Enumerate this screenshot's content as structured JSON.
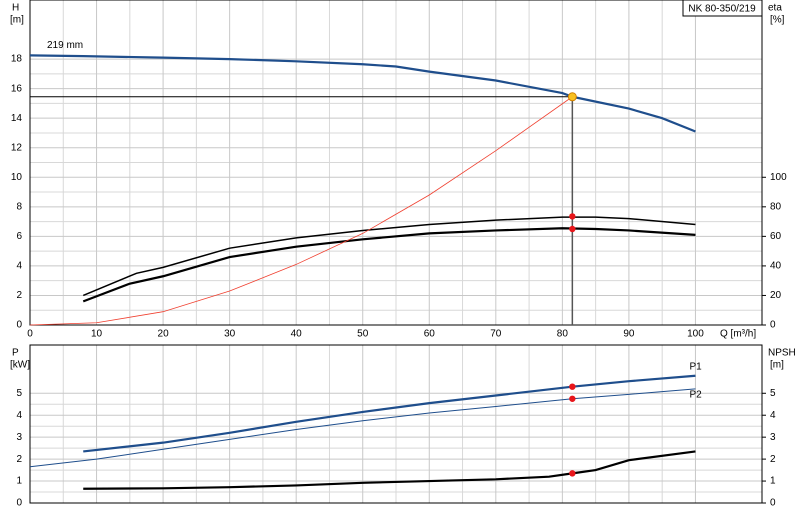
{
  "chart_data": [
    {
      "type": "line",
      "title": "NK 80-350/219",
      "ylabel": "H",
      "yunit": "[m]",
      "y2label": "eta",
      "y2unit": "[%]",
      "xlabel": "Q [m³/h]",
      "xlim": [
        0,
        110
      ],
      "xticks": [
        0,
        10,
        20,
        30,
        40,
        50,
        60,
        70,
        80,
        90,
        100
      ],
      "ylim": [
        0,
        22
      ],
      "yticks": [
        0,
        2,
        4,
        6,
        8,
        10,
        12,
        14,
        16,
        18
      ],
      "y2lim": [
        0,
        220
      ],
      "y2ticks": [
        0,
        20,
        40,
        60,
        80,
        100
      ],
      "grid": true,
      "series": [
        {
          "name": "219 mm",
          "color": "#1f4e8c",
          "width": 2.2,
          "x": [
            0,
            8,
            20,
            30,
            40,
            50,
            55,
            60,
            70,
            80,
            81.5,
            90,
            95,
            100
          ],
          "values": [
            18.25,
            18.2,
            18.1,
            18.0,
            17.85,
            17.65,
            17.5,
            17.15,
            16.55,
            15.7,
            15.45,
            14.65,
            14.0,
            13.1
          ]
        },
        {
          "color": "#000000",
          "width": 1.5,
          "axis": "y2",
          "x": [
            8,
            16,
            20,
            30,
            40,
            50,
            60,
            70,
            80,
            85,
            90,
            100
          ],
          "values": [
            20,
            35,
            39,
            52,
            59,
            64,
            68,
            71,
            73,
            73,
            72,
            68
          ],
          "marker": {
            "x": 81.5,
            "value": 73.5
          }
        },
        {
          "color": "#000000",
          "width": 2.2,
          "axis": "y2",
          "x": [
            8,
            15,
            20,
            30,
            40,
            50,
            60,
            70,
            80,
            85,
            90,
            100
          ],
          "values": [
            16,
            28,
            33,
            46,
            53,
            58,
            62,
            64,
            65.5,
            65,
            64,
            61
          ],
          "marker": {
            "x": 81.5,
            "value": 65
          }
        },
        {
          "color": "#f04030",
          "width": 0.8,
          "x": [
            0,
            10,
            20,
            30,
            40,
            50,
            60,
            70,
            81.5
          ],
          "values": [
            0,
            0.15,
            0.9,
            2.3,
            4.1,
            6.2,
            8.8,
            11.8,
            15.45
          ]
        }
      ],
      "duty_point": {
        "q": 81.5,
        "h": 15.45
      }
    },
    {
      "type": "line",
      "ylabel": "P",
      "yunit": "[kW]",
      "y2label": "NPSH",
      "y2unit": "[m]",
      "xlim": [
        0,
        110
      ],
      "xticks": [
        0,
        10,
        20,
        30,
        40,
        50,
        60,
        70,
        80,
        90,
        100
      ],
      "ylim": [
        0,
        7.2
      ],
      "yticks": [
        0,
        1,
        2,
        3,
        4,
        5
      ],
      "y2lim": [
        0,
        7.2
      ],
      "y2ticks": [
        0,
        1,
        2,
        3,
        4,
        5
      ],
      "grid": true,
      "series": [
        {
          "name": "P1",
          "color": "#1f4e8c",
          "width": 2.2,
          "x": [
            8,
            20,
            30,
            40,
            50,
            60,
            70,
            81.5,
            90,
            100
          ],
          "values": [
            2.35,
            2.75,
            3.2,
            3.7,
            4.15,
            4.55,
            4.9,
            5.3,
            5.55,
            5.8
          ],
          "marker": {
            "x": 81.5,
            "value": 5.3
          }
        },
        {
          "name": "P2",
          "color": "#1f4e8c",
          "width": 1,
          "x": [
            0,
            10,
            20,
            30,
            40,
            50,
            60,
            70,
            81.5,
            90,
            100
          ],
          "values": [
            1.65,
            2.0,
            2.45,
            2.9,
            3.35,
            3.75,
            4.1,
            4.4,
            4.75,
            4.95,
            5.2
          ],
          "marker": {
            "x": 81.5,
            "value": 4.75
          }
        },
        {
          "color": "#000000",
          "width": 2.2,
          "axis": "y2",
          "x": [
            8,
            20,
            30,
            40,
            50,
            60,
            70,
            78,
            81.5,
            85,
            90,
            100
          ],
          "values": [
            0.65,
            0.67,
            0.72,
            0.8,
            0.92,
            1.0,
            1.08,
            1.2,
            1.35,
            1.5,
            1.95,
            2.35
          ],
          "marker": {
            "x": 81.5,
            "value": 1.35
          }
        }
      ]
    }
  ]
}
